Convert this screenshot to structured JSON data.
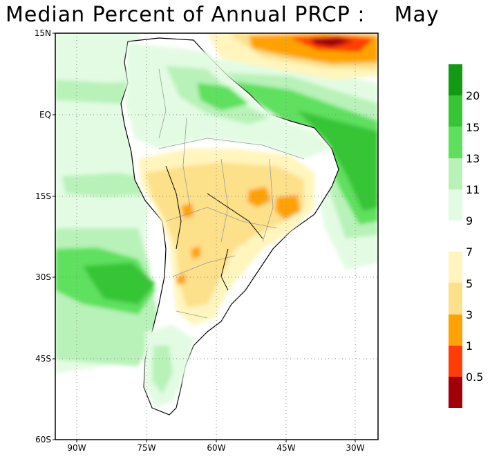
{
  "title": "Median Percent of Annual PRCP :    May",
  "map": {
    "lat_ticks": [
      "15N",
      "EQ",
      "15S",
      "30S",
      "45S",
      "60S"
    ],
    "lon_ticks": [
      "90W",
      "75W",
      "60W",
      "45W",
      "30W"
    ],
    "extent": {
      "lon_min": -93,
      "lon_max": -27,
      "lat_min": -60,
      "lat_max": 15
    }
  },
  "legend": {
    "colors": [
      "#139a13",
      "#35c535",
      "#5ee05e",
      "#b8f2b8",
      "#e3fbe3",
      "#ffffff",
      "#fff5bd",
      "#fde08a",
      "#ffa206",
      "#ff3d05",
      "#a00008"
    ],
    "labels": [
      "20",
      "15",
      "13",
      "11",
      "9",
      "7",
      "5",
      "3",
      "1",
      "0.5"
    ]
  }
}
